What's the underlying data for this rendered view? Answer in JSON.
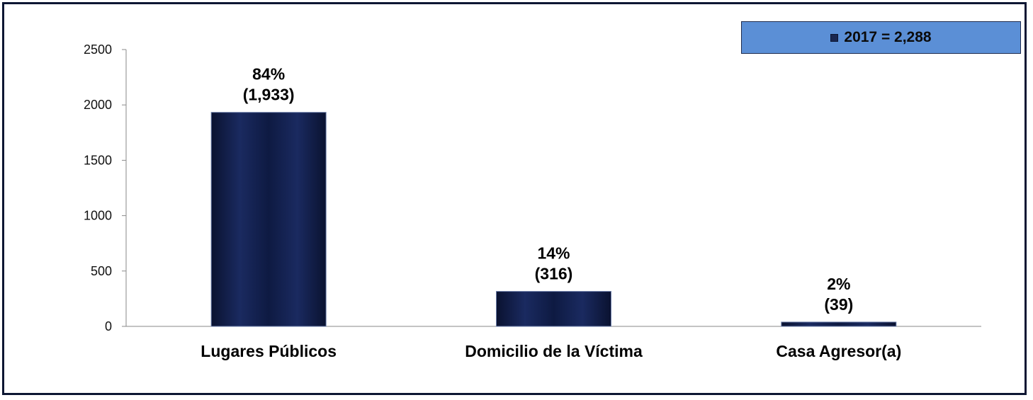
{
  "legend": {
    "label": "2017 = 2,288",
    "swatch_color": "#1a2750",
    "background": "#5b8fd6"
  },
  "chart_data": {
    "type": "bar",
    "categories": [
      "Lugares Públicos",
      "Domicilio de la Víctima",
      "Casa Agresor(a)"
    ],
    "series": [
      {
        "name": "2017 = 2,288",
        "values": [
          1933,
          316,
          39
        ]
      }
    ],
    "data_labels": [
      {
        "pct": "84%",
        "count": "(1,933)"
      },
      {
        "pct": "14%",
        "count": "(316)"
      },
      {
        "pct": "2%",
        "count": "(39)"
      }
    ],
    "yticks": [
      "0",
      "500",
      "1000",
      "1500",
      "2000",
      "2500"
    ],
    "ylim": [
      0,
      2500
    ],
    "bar_color": "#132150",
    "grid": false,
    "legend_position": "top-right"
  }
}
